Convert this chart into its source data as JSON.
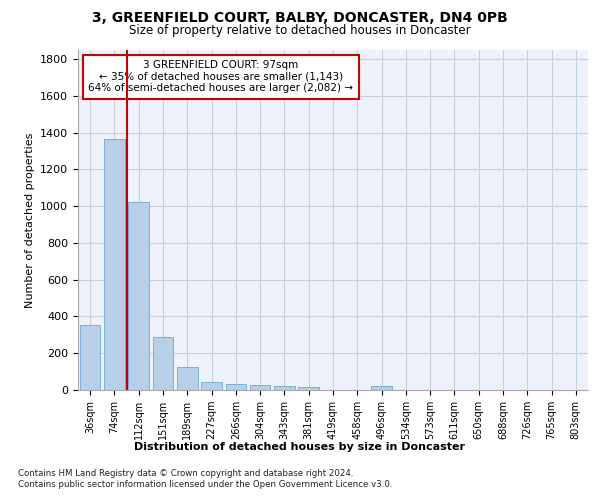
{
  "title": "3, GREENFIELD COURT, BALBY, DONCASTER, DN4 0PB",
  "subtitle": "Size of property relative to detached houses in Doncaster",
  "xlabel": "Distribution of detached houses by size in Doncaster",
  "ylabel": "Number of detached properties",
  "categories": [
    "36sqm",
    "74sqm",
    "112sqm",
    "151sqm",
    "189sqm",
    "227sqm",
    "266sqm",
    "304sqm",
    "343sqm",
    "381sqm",
    "419sqm",
    "458sqm",
    "496sqm",
    "534sqm",
    "573sqm",
    "611sqm",
    "650sqm",
    "688sqm",
    "726sqm",
    "765sqm",
    "803sqm"
  ],
  "values": [
    355,
    1365,
    1025,
    290,
    125,
    42,
    35,
    28,
    20,
    15,
    0,
    0,
    20,
    0,
    0,
    0,
    0,
    0,
    0,
    0,
    0
  ],
  "bar_color": "#b8cfe8",
  "bar_edge_color": "#7aafd4",
  "property_line_x": 1.5,
  "property_line_color": "#cc0000",
  "annotation_text": "3 GREENFIELD COURT: 97sqm\n← 35% of detached houses are smaller (1,143)\n64% of semi-detached houses are larger (2,082) →",
  "annotation_box_color": "#cc0000",
  "ylim": [
    0,
    1850
  ],
  "yticks": [
    0,
    200,
    400,
    600,
    800,
    1000,
    1200,
    1400,
    1600,
    1800
  ],
  "grid_color": "#c8d0e0",
  "bg_color": "#edf2fb",
  "footer1": "Contains HM Land Registry data © Crown copyright and database right 2024.",
  "footer2": "Contains public sector information licensed under the Open Government Licence v3.0."
}
